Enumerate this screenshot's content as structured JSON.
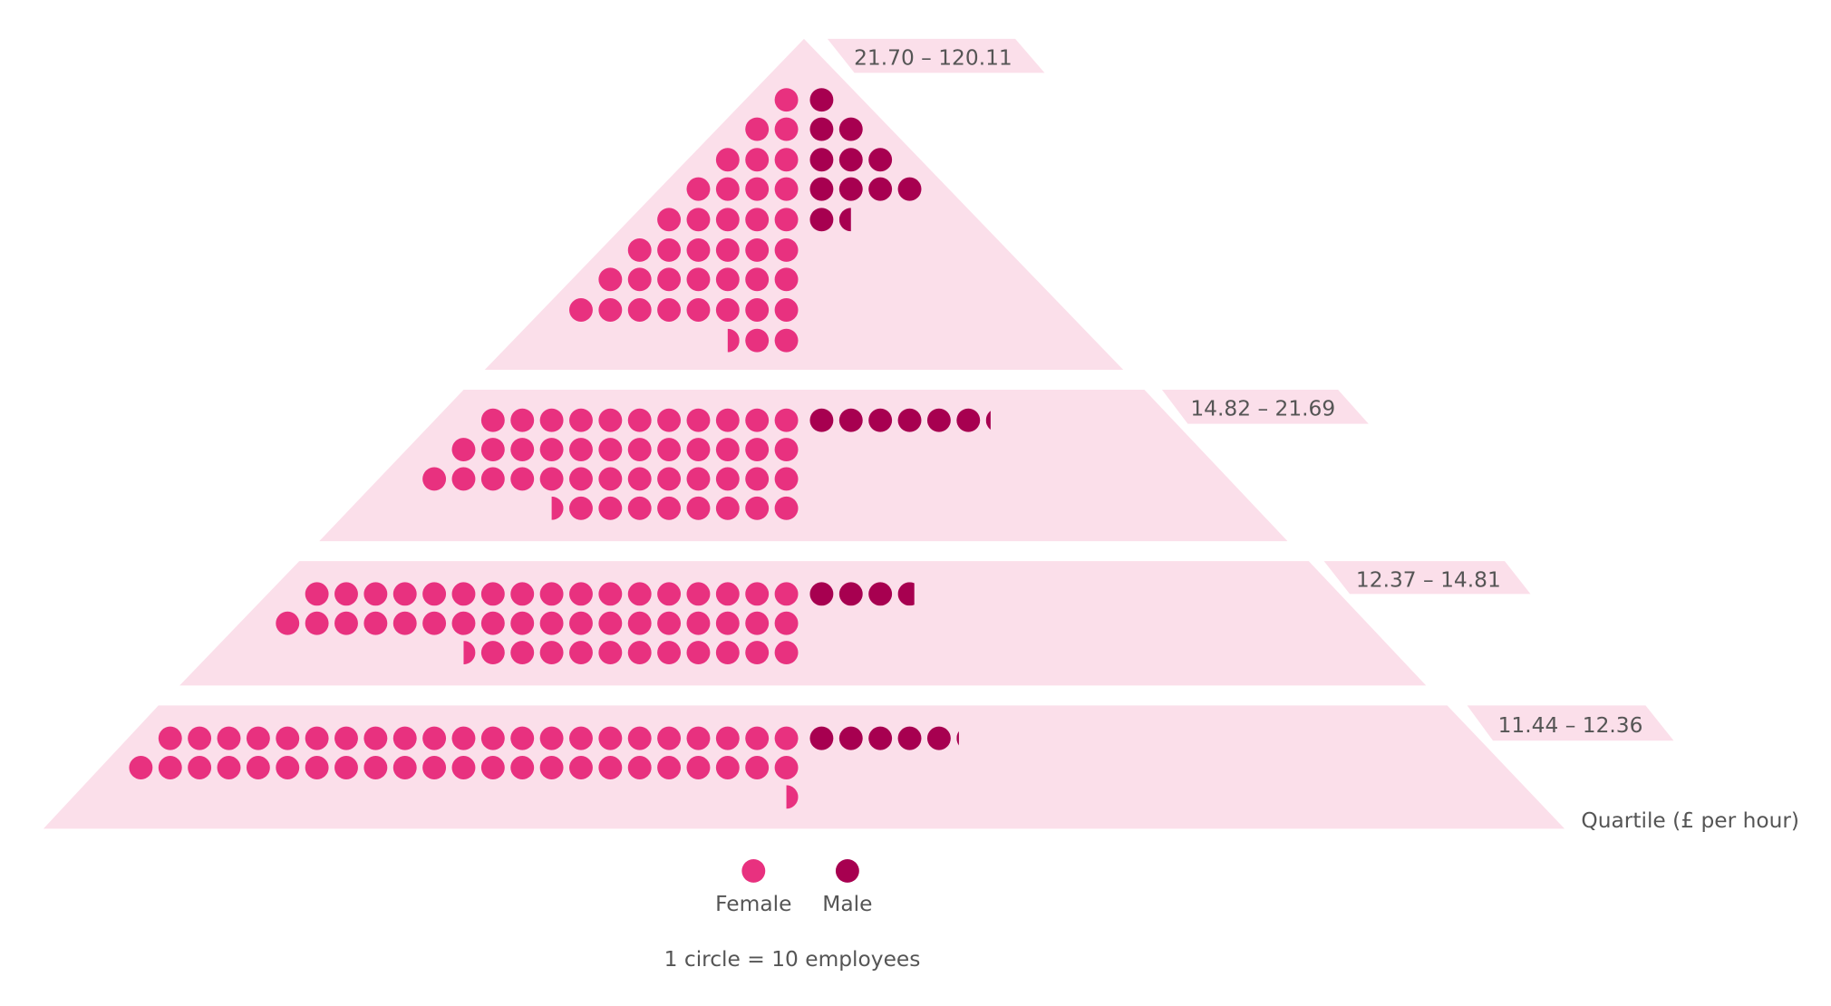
{
  "chart_data": {
    "type": "pictogram-pyramid",
    "unit_note": "1 circle = 10 employees",
    "axis_label": "Quartile (£ per hour)",
    "legend": [
      {
        "name": "Female",
        "color": "#e8317f"
      },
      {
        "name": "Male",
        "color": "#a70050"
      }
    ],
    "legend_placement": "bottom",
    "background_color": "#fbdfea",
    "quartiles": [
      {
        "range": "21.70 – 120.11",
        "female_rows": [
          1,
          2,
          3,
          4,
          5,
          6,
          7,
          8,
          2.5
        ],
        "male_rows": [
          1,
          2,
          3,
          4,
          1.5
        ]
      },
      {
        "range": "14.82 – 21.69",
        "female_rows": [
          11,
          12,
          13,
          8.5
        ],
        "male_rows": [
          6.2
        ]
      },
      {
        "range": "12.37 – 14.81",
        "female_rows": [
          17,
          18,
          11.5
        ],
        "male_rows": [
          3.7
        ]
      },
      {
        "range": "11.44 – 12.36",
        "female_rows": [
          22,
          23,
          0.5
        ],
        "male_rows": [
          5.1
        ]
      }
    ]
  }
}
